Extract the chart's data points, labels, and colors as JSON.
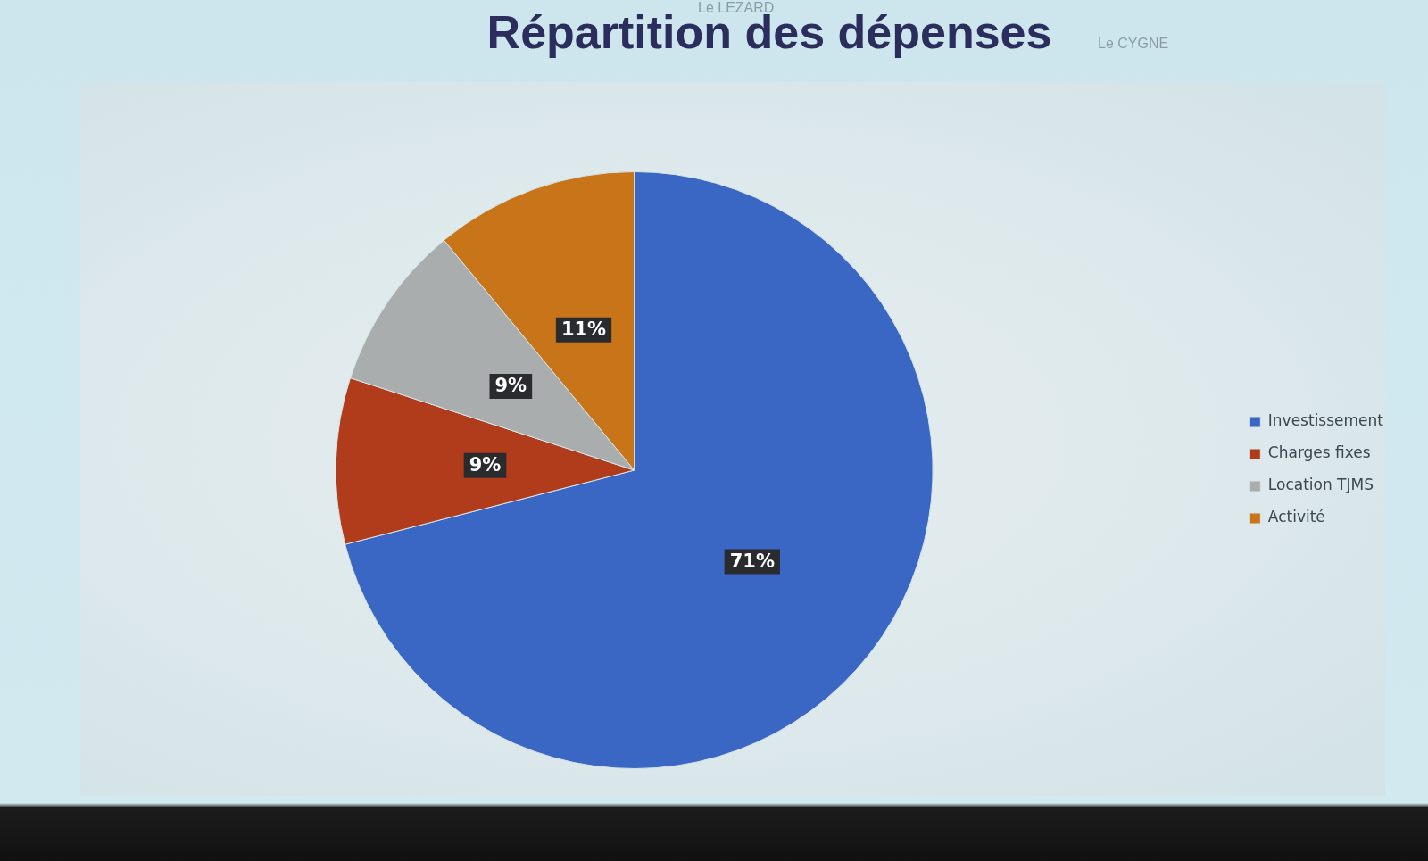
{
  "chart_data": {
    "type": "pie",
    "title": "Répartition des dépenses",
    "categories": [
      "Investissement",
      "Charges fixes",
      "Location TJMS",
      "Activité"
    ],
    "values": [
      71,
      9,
      9,
      11
    ],
    "colors": [
      "#3a66c4",
      "#b13c1c",
      "#a9adad",
      "#c8751a"
    ],
    "value_labels": [
      "71%",
      "9%",
      "9%",
      "11%"
    ],
    "legend": "right",
    "annotations": [
      "Le LEZARD",
      "Le CYGNE"
    ]
  }
}
